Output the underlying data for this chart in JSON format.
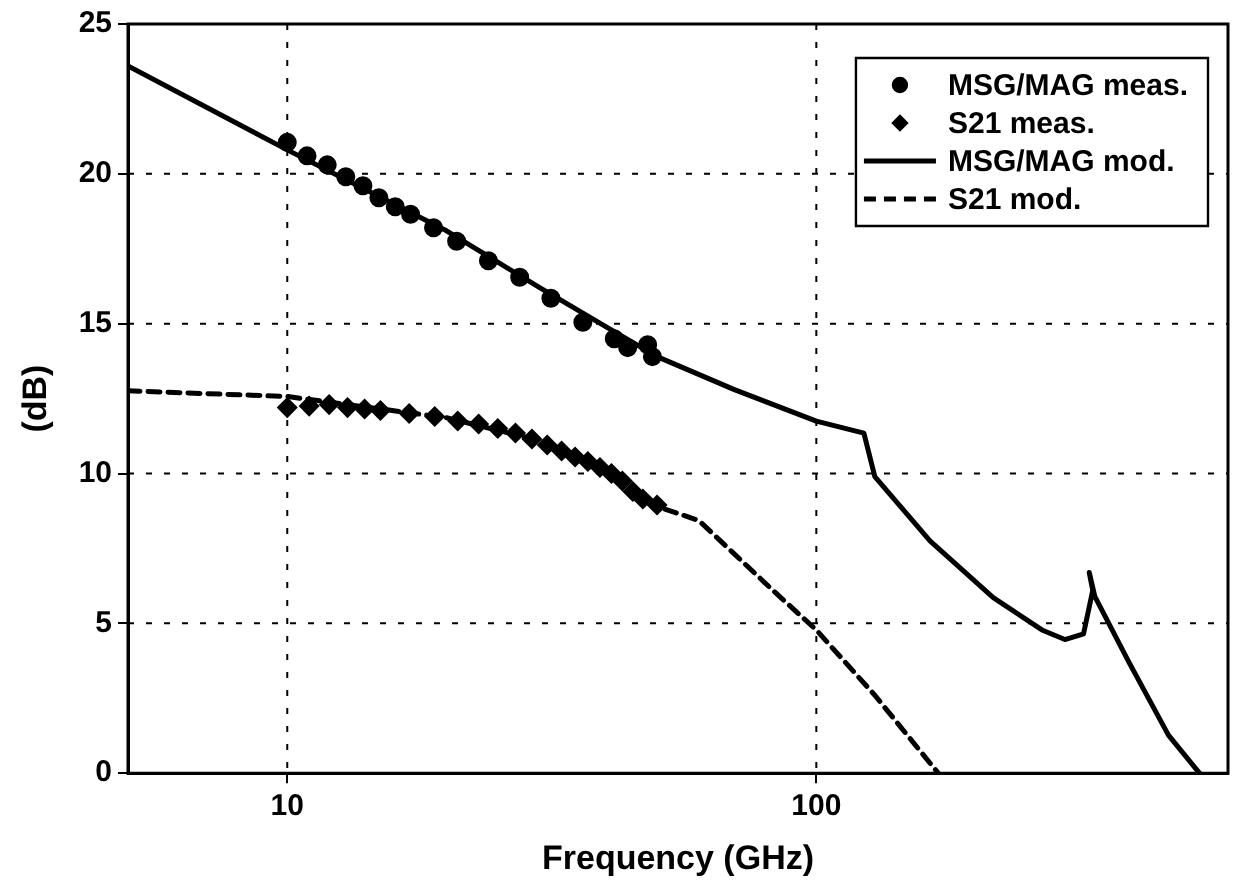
{
  "chart_data": {
    "type": "line",
    "xlabel": "Frequency (GHz)",
    "ylabel": "(dB)",
    "log": "x",
    "xlim": [
      5,
      600
    ],
    "xticks": [
      10,
      100
    ],
    "ylim": [
      0,
      25
    ],
    "yticks": [
      0,
      5,
      10,
      15,
      20,
      25
    ],
    "grid": true,
    "legend": "top right",
    "series": [
      {
        "name": "MSG/MAG meas.",
        "type": "scatter",
        "marker": "circle",
        "color": "#000000",
        "x": [
          10,
          10.9,
          11.9,
          12.9,
          13.9,
          14.9,
          16,
          17.1,
          18.9,
          20.9,
          24,
          27.5,
          31.5,
          36.2,
          41.5,
          44,
          48,
          49
        ],
        "values": [
          21.05,
          20.6,
          20.3,
          19.9,
          19.6,
          19.2,
          18.9,
          18.65,
          18.2,
          17.75,
          17.1,
          16.55,
          15.85,
          15.05,
          14.5,
          14.2,
          14.3,
          13.9
        ]
      },
      {
        "name": "S21 meas.",
        "type": "scatter",
        "marker": "diamond",
        "color": "#000000",
        "x": [
          10,
          11,
          12,
          13,
          14,
          15,
          17,
          19,
          21,
          23,
          25,
          27,
          29,
          31,
          33,
          35,
          37,
          39,
          41,
          43,
          45,
          47,
          50
        ],
        "values": [
          12.2,
          12.25,
          12.3,
          12.2,
          12.15,
          12.1,
          12.0,
          11.9,
          11.75,
          11.65,
          11.5,
          11.35,
          11.15,
          10.95,
          10.75,
          10.55,
          10.4,
          10.2,
          10.0,
          9.75,
          9.4,
          9.15,
          8.95
        ]
      },
      {
        "name": "MSG/MAG mod.",
        "type": "line",
        "marker": "none",
        "line_style": "solid",
        "color": "#000000",
        "x": [
          5,
          10,
          20,
          30,
          40,
          50,
          70,
          100,
          123,
          129,
          164,
          216,
          267,
          295,
          320,
          333,
          328,
          336,
          390,
          463,
          530
        ],
        "values": [
          23.6,
          20.8,
          18.1,
          16.2,
          14.9,
          13.9,
          12.8,
          11.75,
          11.35,
          9.9,
          7.75,
          5.86,
          4.78,
          4.46,
          4.65,
          6.1,
          6.7,
          5.9,
          3.7,
          1.27,
          0
        ]
      },
      {
        "name": "S21 mod.",
        "type": "line",
        "marker": "none",
        "line_style": "dashed",
        "color": "#000000",
        "x": [
          5,
          10,
          20,
          30,
          40,
          45,
          50,
          60,
          82.8,
          100,
          129,
          170
        ],
        "values": [
          12.76,
          12.57,
          11.86,
          11.1,
          10.2,
          9.5,
          8.9,
          8.43,
          6.1,
          4.78,
          2.6,
          0
        ]
      }
    ]
  }
}
